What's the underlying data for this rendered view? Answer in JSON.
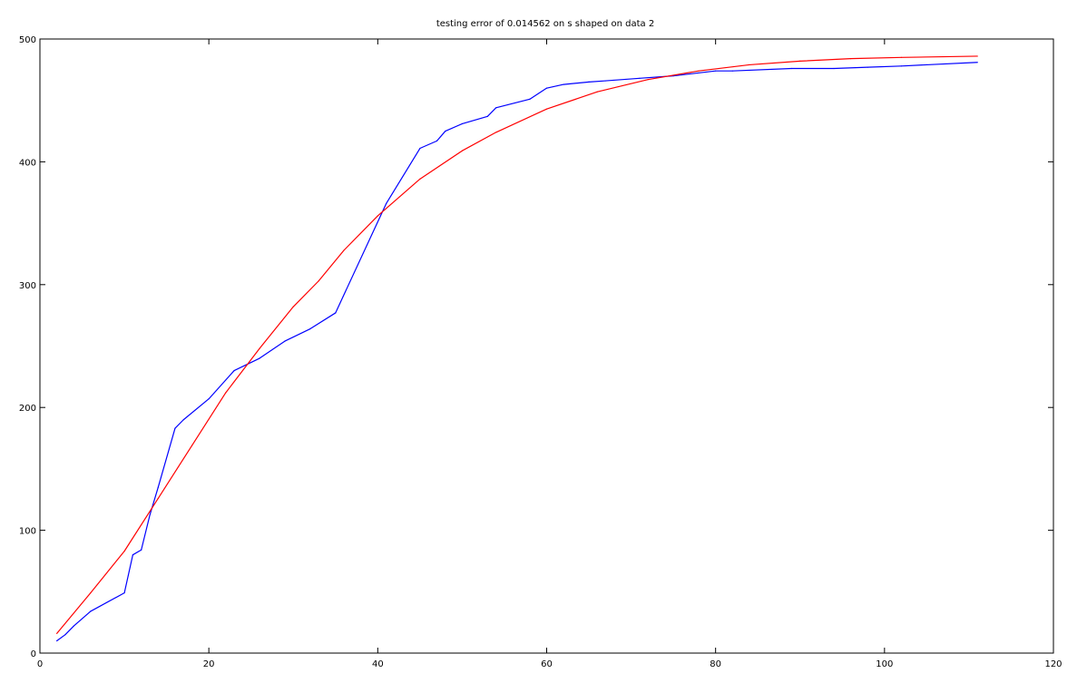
{
  "chart_data": {
    "type": "line",
    "title": "testing error of 0.014562 on s shaped on data 2",
    "xlabel": "",
    "ylabel": "",
    "xlim": [
      0,
      120
    ],
    "ylim": [
      0,
      500
    ],
    "x_ticks": [
      0,
      20,
      40,
      60,
      80,
      100,
      120
    ],
    "y_ticks": [
      0,
      100,
      200,
      300,
      400,
      500
    ],
    "grid": false,
    "legend": "none",
    "series": [
      {
        "color": "#0000ff",
        "x": [
          2,
          3,
          4,
          6,
          10,
          11,
          12,
          13,
          14,
          16,
          17,
          20,
          23,
          26,
          29,
          32,
          35,
          41,
          45,
          47,
          48,
          50,
          53,
          54,
          58,
          60,
          62,
          65,
          67,
          71,
          75,
          80,
          82,
          89,
          94,
          98,
          102,
          105,
          111
        ],
        "y": [
          10,
          15,
          22,
          34,
          49,
          80,
          84,
          112,
          135,
          183,
          190,
          207,
          230,
          240,
          254,
          264,
          277,
          366,
          411,
          417,
          425,
          431,
          437,
          444,
          451,
          460,
          463,
          465,
          466,
          468,
          470,
          474,
          474,
          476,
          476,
          477,
          478,
          479,
          481
        ]
      },
      {
        "color": "#ff0000",
        "x": [
          2,
          6,
          10,
          14,
          18,
          22,
          26,
          30,
          33,
          36,
          40,
          45,
          50,
          54,
          60,
          66,
          72,
          78,
          84,
          90,
          96,
          102,
          111
        ],
        "y": [
          16,
          49,
          83,
          126,
          169,
          212,
          248,
          282,
          303,
          328,
          356,
          386,
          409,
          424,
          443,
          457,
          467,
          474,
          479,
          482,
          484,
          485,
          486
        ]
      }
    ]
  }
}
